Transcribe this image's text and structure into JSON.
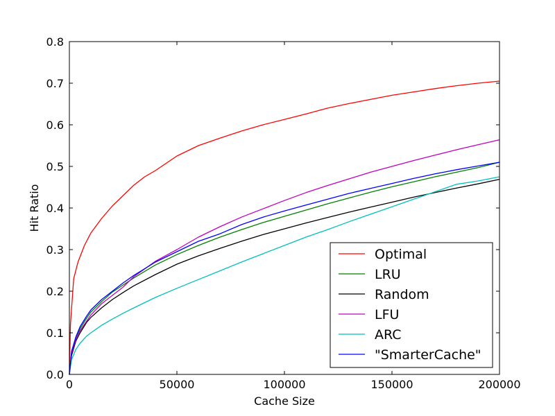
{
  "chart_data": {
    "type": "line",
    "title": "",
    "xlabel": "Cache Size",
    "ylabel": "Hit Ratio",
    "xlim": [
      0,
      200000
    ],
    "ylim": [
      0,
      0.8
    ],
    "xticks": [
      0,
      50000,
      100000,
      150000,
      200000
    ],
    "xtick_labels": [
      "0",
      "50000",
      "100000",
      "150000",
      "200000"
    ],
    "yticks": [
      0,
      0.1,
      0.2,
      0.3,
      0.4,
      0.5,
      0.6,
      0.7,
      0.8
    ],
    "ytick_labels": [
      "0.0",
      "0.1",
      "0.2",
      "0.3",
      "0.4",
      "0.5",
      "0.6",
      "0.7",
      "0.8"
    ],
    "grid": false,
    "legend_position": "lower-right",
    "series": [
      {
        "name": "Optimal",
        "color": "#ff0000",
        "points": [
          [
            0,
            0.0
          ],
          [
            500,
            0.12
          ],
          [
            2000,
            0.23
          ],
          [
            4000,
            0.27
          ],
          [
            7000,
            0.31
          ],
          [
            10000,
            0.34
          ],
          [
            15000,
            0.375
          ],
          [
            20000,
            0.405
          ],
          [
            25000,
            0.43
          ],
          [
            30000,
            0.455
          ],
          [
            35000,
            0.475
          ],
          [
            40000,
            0.49
          ],
          [
            50000,
            0.525
          ],
          [
            60000,
            0.55
          ],
          [
            70000,
            0.568
          ],
          [
            80000,
            0.585
          ],
          [
            90000,
            0.6
          ],
          [
            100000,
            0.613
          ],
          [
            110000,
            0.626
          ],
          [
            120000,
            0.64
          ],
          [
            130000,
            0.651
          ],
          [
            140000,
            0.661
          ],
          [
            150000,
            0.671
          ],
          [
            160000,
            0.679
          ],
          [
            170000,
            0.687
          ],
          [
            180000,
            0.694
          ],
          [
            190000,
            0.7
          ],
          [
            200000,
            0.705
          ]
        ]
      },
      {
        "name": "LRU",
        "color": "#008000",
        "points": [
          [
            0,
            0.0
          ],
          [
            1000,
            0.05
          ],
          [
            3000,
            0.085
          ],
          [
            5000,
            0.11
          ],
          [
            8000,
            0.135
          ],
          [
            10000,
            0.15
          ],
          [
            15000,
            0.175
          ],
          [
            20000,
            0.198
          ],
          [
            25000,
            0.215
          ],
          [
            30000,
            0.232
          ],
          [
            40000,
            0.263
          ],
          [
            50000,
            0.288
          ],
          [
            60000,
            0.31
          ],
          [
            70000,
            0.33
          ],
          [
            80000,
            0.348
          ],
          [
            90000,
            0.365
          ],
          [
            100000,
            0.38
          ],
          [
            110000,
            0.395
          ],
          [
            120000,
            0.41
          ],
          [
            130000,
            0.424
          ],
          [
            140000,
            0.438
          ],
          [
            150000,
            0.451
          ],
          [
            160000,
            0.463
          ],
          [
            170000,
            0.475
          ],
          [
            180000,
            0.486
          ],
          [
            190000,
            0.497
          ],
          [
            200000,
            0.51
          ]
        ]
      },
      {
        "name": "Random",
        "color": "#000000",
        "points": [
          [
            0,
            0.0
          ],
          [
            1000,
            0.045
          ],
          [
            3000,
            0.08
          ],
          [
            5000,
            0.1
          ],
          [
            8000,
            0.125
          ],
          [
            10000,
            0.137
          ],
          [
            15000,
            0.16
          ],
          [
            20000,
            0.18
          ],
          [
            25000,
            0.197
          ],
          [
            30000,
            0.213
          ],
          [
            40000,
            0.24
          ],
          [
            50000,
            0.265
          ],
          [
            60000,
            0.285
          ],
          [
            70000,
            0.303
          ],
          [
            80000,
            0.32
          ],
          [
            90000,
            0.336
          ],
          [
            100000,
            0.35
          ],
          [
            110000,
            0.364
          ],
          [
            120000,
            0.377
          ],
          [
            130000,
            0.39
          ],
          [
            140000,
            0.402
          ],
          [
            150000,
            0.414
          ],
          [
            160000,
            0.426
          ],
          [
            170000,
            0.437
          ],
          [
            180000,
            0.448
          ],
          [
            190000,
            0.458
          ],
          [
            200000,
            0.469
          ]
        ]
      },
      {
        "name": "LFU",
        "color": "#bf00bf",
        "points": [
          [
            0,
            0.0
          ],
          [
            1000,
            0.05
          ],
          [
            3000,
            0.085
          ],
          [
            5000,
            0.105
          ],
          [
            8000,
            0.128
          ],
          [
            10000,
            0.143
          ],
          [
            15000,
            0.17
          ],
          [
            20000,
            0.19
          ],
          [
            25000,
            0.21
          ],
          [
            30000,
            0.235
          ],
          [
            40000,
            0.272
          ],
          [
            50000,
            0.3
          ],
          [
            60000,
            0.33
          ],
          [
            70000,
            0.355
          ],
          [
            80000,
            0.378
          ],
          [
            90000,
            0.398
          ],
          [
            100000,
            0.418
          ],
          [
            110000,
            0.437
          ],
          [
            120000,
            0.454
          ],
          [
            130000,
            0.47
          ],
          [
            140000,
            0.486
          ],
          [
            150000,
            0.5
          ],
          [
            160000,
            0.514
          ],
          [
            170000,
            0.527
          ],
          [
            180000,
            0.54
          ],
          [
            190000,
            0.552
          ],
          [
            200000,
            0.564
          ]
        ]
      },
      {
        "name": "ARC",
        "color": "#00bfbf",
        "points": [
          [
            0,
            0.0
          ],
          [
            1000,
            0.035
          ],
          [
            3000,
            0.06
          ],
          [
            5000,
            0.075
          ],
          [
            8000,
            0.092
          ],
          [
            10000,
            0.1
          ],
          [
            15000,
            0.118
          ],
          [
            20000,
            0.133
          ],
          [
            25000,
            0.147
          ],
          [
            30000,
            0.16
          ],
          [
            40000,
            0.185
          ],
          [
            50000,
            0.207
          ],
          [
            60000,
            0.228
          ],
          [
            70000,
            0.249
          ],
          [
            80000,
            0.27
          ],
          [
            90000,
            0.29
          ],
          [
            100000,
            0.31
          ],
          [
            110000,
            0.33
          ],
          [
            120000,
            0.348
          ],
          [
            130000,
            0.367
          ],
          [
            140000,
            0.385
          ],
          [
            150000,
            0.403
          ],
          [
            160000,
            0.421
          ],
          [
            170000,
            0.439
          ],
          [
            180000,
            0.457
          ],
          [
            190000,
            0.465
          ],
          [
            200000,
            0.475
          ]
        ]
      },
      {
        "name": "\"SmarterCache\"",
        "color": "#0000ff",
        "points": [
          [
            0,
            0.0
          ],
          [
            1000,
            0.055
          ],
          [
            3000,
            0.09
          ],
          [
            5000,
            0.115
          ],
          [
            8000,
            0.14
          ],
          [
            10000,
            0.155
          ],
          [
            15000,
            0.18
          ],
          [
            20000,
            0.2
          ],
          [
            25000,
            0.22
          ],
          [
            30000,
            0.238
          ],
          [
            40000,
            0.27
          ],
          [
            50000,
            0.295
          ],
          [
            60000,
            0.32
          ],
          [
            70000,
            0.338
          ],
          [
            80000,
            0.36
          ],
          [
            90000,
            0.378
          ],
          [
            100000,
            0.393
          ],
          [
            110000,
            0.407
          ],
          [
            120000,
            0.421
          ],
          [
            130000,
            0.435
          ],
          [
            140000,
            0.447
          ],
          [
            150000,
            0.459
          ],
          [
            160000,
            0.471
          ],
          [
            170000,
            0.482
          ],
          [
            180000,
            0.492
          ],
          [
            190000,
            0.501
          ],
          [
            200000,
            0.51
          ]
        ]
      }
    ]
  }
}
